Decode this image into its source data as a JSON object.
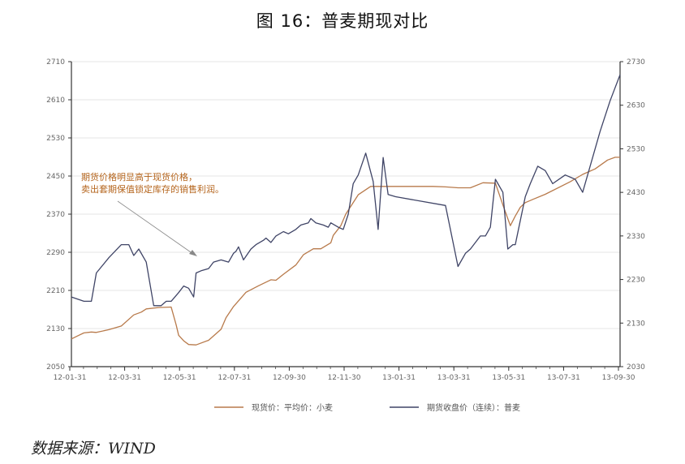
{
  "title": "图 16：普麦期现对比",
  "source": "数据来源：WIND",
  "colors": {
    "spot": "#b87a4b",
    "futures": "#3f4466",
    "axis": "#333333",
    "grid": "#e6e6e6"
  },
  "chart_data": {
    "type": "line",
    "title": "图 16：普麦期现对比",
    "x_tick_labels": [
      "12-01-31",
      "12-03-31",
      "12-05-31",
      "12-07-31",
      "12-09-30",
      "12-11-30",
      "13-01-31",
      "13-03-31",
      "13-05-31",
      "13-07-31",
      "13-09-30"
    ],
    "y_left": {
      "ticks": [
        "2050",
        "2130",
        "2210",
        "2290",
        "2370",
        "2450",
        "2530",
        "2610",
        "2710"
      ]
    },
    "y_right": {
      "ticks": [
        "2030",
        "2130",
        "2230",
        "2330",
        "2430",
        "2530",
        "2630",
        "2730"
      ]
    },
    "grid": true,
    "legend_position": "bottom",
    "annotation": [
      "期货价格明显高于现货价格，",
      "卖出套期保值锁定库存的销售利润。"
    ],
    "series": [
      {
        "name": "现货价：平均价：小麦",
        "axis": "left",
        "x": [
          0.0,
          0.3,
          0.5,
          0.8,
          1.0,
          1.5,
          2.0,
          2.5,
          2.8,
          3.0,
          3.5,
          4.0,
          4.2,
          4.3,
          4.5,
          4.7,
          5.0,
          5.5,
          6.0,
          6.2,
          6.5,
          7.0,
          7.5,
          8.0,
          8.2,
          8.5,
          9.0,
          9.3,
          9.7,
          10.0,
          10.4,
          10.5,
          10.8,
          11.0,
          11.5,
          12.0,
          12.3,
          12.8,
          13.2,
          13.7,
          14.0,
          14.5,
          15.0,
          15.5,
          16.0,
          16.5,
          17.0,
          17.3,
          17.6,
          17.8,
          18.0,
          18.2,
          18.5,
          19.0,
          20.0,
          20.5,
          21.0,
          21.5,
          21.8,
          22.0
        ],
        "y": [
          2110,
          2118,
          2123,
          2125,
          2124,
          2130,
          2138,
          2162,
          2168,
          2175,
          2178,
          2179,
          2140,
          2118,
          2106,
          2098,
          2097,
          2107,
          2131,
          2156,
          2180,
          2211,
          2225,
          2238,
          2237,
          2250,
          2270,
          2292,
          2305,
          2305,
          2318,
          2334,
          2355,
          2380,
          2422,
          2440,
          2440,
          2440,
          2440,
          2440,
          2440,
          2440,
          2439,
          2437,
          2437,
          2448,
          2447,
          2400,
          2355,
          2376,
          2395,
          2405,
          2412,
          2423,
          2450,
          2466,
          2478,
          2497,
          2503,
          2503
        ]
      },
      {
        "name": "期货收盘价（连续）：普麦",
        "axis": "right",
        "x": [
          0.0,
          0.5,
          0.8,
          1.0,
          1.5,
          2.0,
          2.3,
          2.5,
          2.7,
          3.0,
          3.3,
          3.6,
          3.8,
          4.0,
          4.3,
          4.5,
          4.7,
          4.9,
          5.0,
          5.2,
          5.5,
          5.7,
          6.0,
          6.3,
          6.5,
          6.6,
          6.7,
          6.9,
          7.2,
          7.4,
          7.7,
          7.8,
          8.0,
          8.2,
          8.5,
          8.7,
          9.0,
          9.2,
          9.5,
          9.6,
          9.8,
          10.1,
          10.3,
          10.4,
          10.7,
          10.9,
          11.1,
          11.3,
          11.5,
          11.8,
          12.1,
          12.3,
          12.5,
          12.7,
          13.0,
          15.0,
          15.5,
          15.8,
          16.0,
          16.4,
          16.6,
          16.8,
          17.0,
          17.3,
          17.5,
          17.7,
          17.8,
          18.2,
          18.4,
          18.7,
          19.0,
          19.3,
          19.8,
          20.2,
          20.5,
          20.8,
          21.2,
          21.6,
          22.0
        ],
        "y": [
          2190,
          2180,
          2180,
          2245,
          2280,
          2310,
          2310,
          2285,
          2300,
          2270,
          2170,
          2170,
          2180,
          2180,
          2200,
          2215,
          2210,
          2190,
          2245,
          2250,
          2255,
          2270,
          2275,
          2270,
          2290,
          2295,
          2305,
          2275,
          2300,
          2310,
          2320,
          2325,
          2315,
          2330,
          2340,
          2335,
          2345,
          2355,
          2360,
          2370,
          2360,
          2355,
          2350,
          2360,
          2350,
          2345,
          2380,
          2450,
          2470,
          2520,
          2455,
          2345,
          2510,
          2425,
          2420,
          2400,
          2260,
          2290,
          2300,
          2330,
          2330,
          2350,
          2460,
          2430,
          2300,
          2310,
          2310,
          2420,
          2450,
          2490,
          2480,
          2450,
          2470,
          2460,
          2430,
          2490,
          2570,
          2640,
          2700
        ]
      }
    ]
  }
}
